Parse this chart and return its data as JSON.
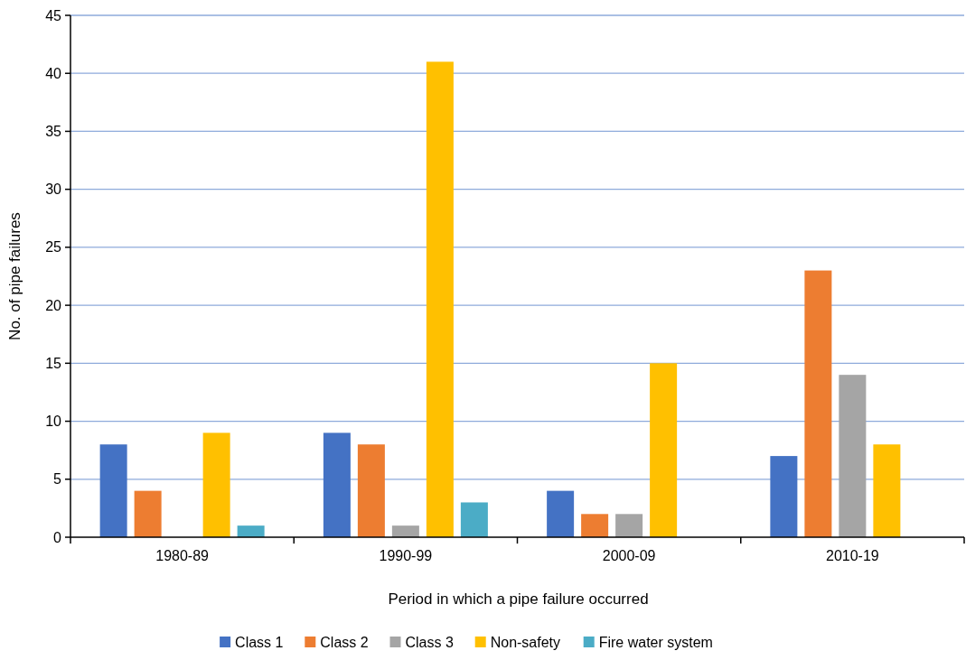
{
  "chart_data": {
    "type": "bar",
    "xlabel": "Period in which a pipe failure occurred",
    "ylabel": "No. of pipe failures",
    "categories": [
      "1980-89",
      "1990-99",
      "2000-09",
      "2010-19"
    ],
    "series": [
      {
        "name": "Class 1",
        "color": "#4472c4",
        "values": [
          8,
          9,
          4,
          7
        ]
      },
      {
        "name": "Class 2",
        "color": "#ed7d31",
        "values": [
          4,
          8,
          2,
          23
        ]
      },
      {
        "name": "Class 3",
        "color": "#a5a5a5",
        "values": [
          0,
          1,
          2,
          14
        ]
      },
      {
        "name": "Non-safety",
        "color": "#ffc000",
        "values": [
          9,
          41,
          15,
          8
        ]
      },
      {
        "name": "Fire water system",
        "color": "#4bacc6",
        "values": [
          1,
          3,
          0,
          0
        ]
      }
    ],
    "ylim": [
      0,
      45
    ],
    "yticks": [
      0,
      5,
      10,
      15,
      20,
      25,
      30,
      35,
      40,
      45
    ],
    "grid": "y",
    "legend": "bottom"
  }
}
